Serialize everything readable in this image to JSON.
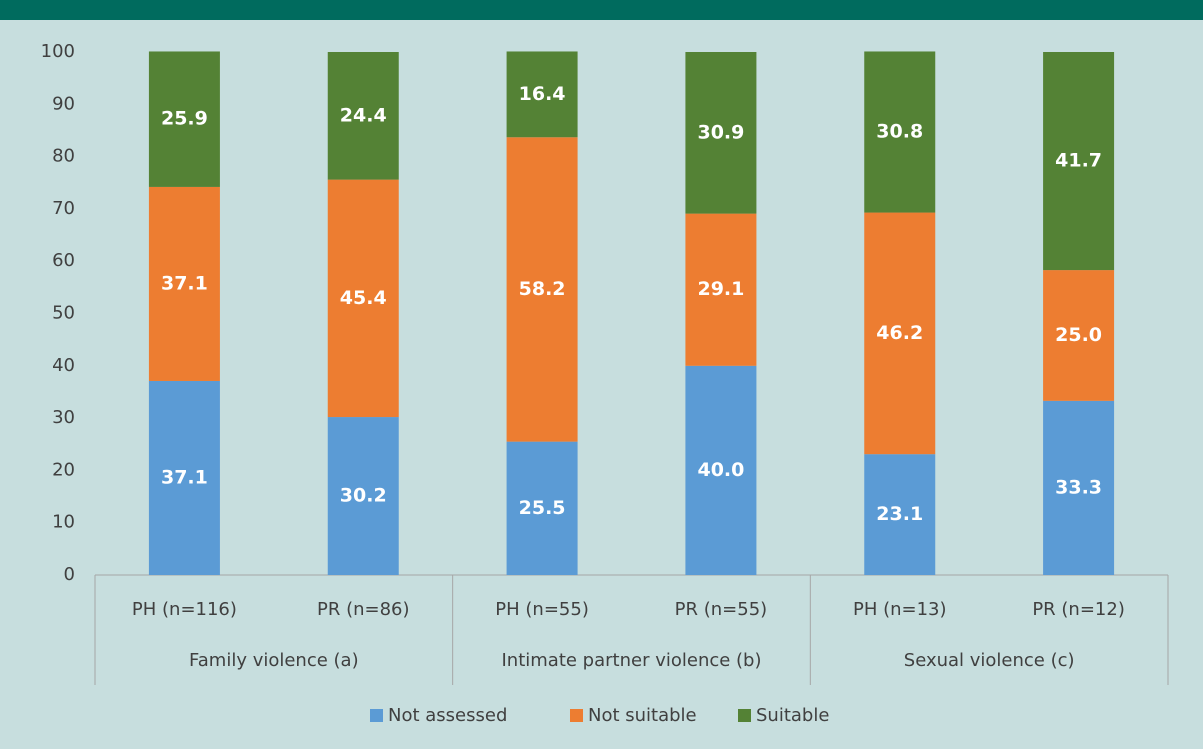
{
  "chart_data": {
    "type": "stacked_bar",
    "categories": [
      "PH (n=116)",
      "PR (n=86)",
      "PH (n=55)",
      "PR (n=55)",
      "PH (n=13)",
      "PR (n=12)"
    ],
    "groups": [
      "Family violence (a)",
      "Intimate partner violence (b)",
      "Sexual violence (c)"
    ],
    "series": [
      {
        "name": "Not assessed",
        "color": "#5b9bd5",
        "values": [
          37.1,
          30.2,
          25.5,
          40,
          23.1,
          33.3
        ],
        "value_labels": [
          "37.1",
          "30.2",
          "25.5",
          "40.0",
          "23.1",
          "33.3"
        ]
      },
      {
        "name": "Not suitable",
        "color": "#ed7d31",
        "values": [
          37.1,
          45.4,
          58.2,
          29.1,
          46.2,
          25
        ],
        "value_labels": [
          "37.1",
          "45.4",
          "58.2",
          "29.1",
          "46.2",
          "25.0"
        ]
      },
      {
        "name": "Suitable",
        "color": "#548235",
        "values": [
          25.9,
          24.4,
          16.4,
          30.9,
          30.8,
          41.7
        ],
        "value_labels": [
          "25.9",
          "24.4",
          "16.4",
          "30.9",
          "30.8",
          "41.7"
        ]
      }
    ],
    "ylim": [
      0,
      100
    ],
    "yticks": [
      0,
      10,
      20,
      30,
      40,
      50,
      60,
      70,
      80,
      90,
      100
    ],
    "grid": false,
    "legend": "bottom"
  }
}
